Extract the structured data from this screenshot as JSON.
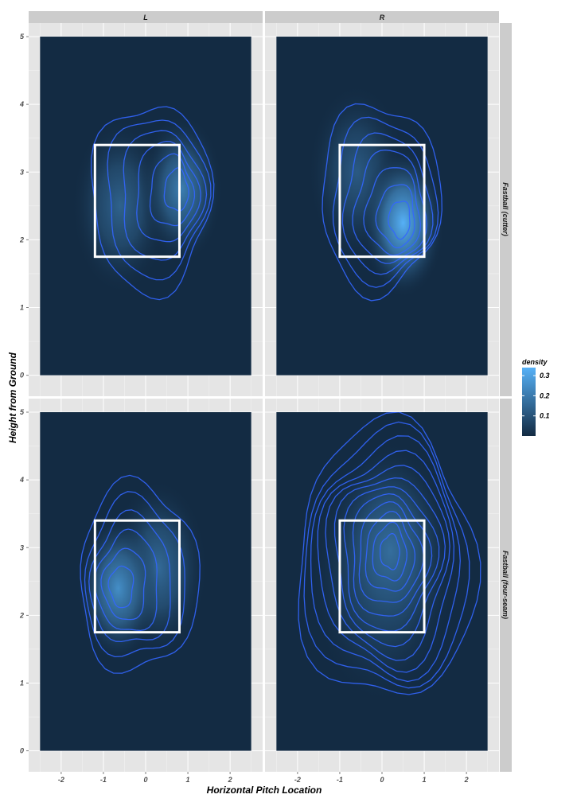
{
  "chart_data": {
    "type": "heatmap",
    "xlabel": "Horizontal Pitch Location",
    "ylabel": "Height from Ground",
    "xlim": [
      -2.5,
      2.5
    ],
    "ylim": [
      0,
      5
    ],
    "x_ticks": [
      -2,
      -1,
      0,
      1,
      2
    ],
    "x_tick_labels": [
      "-2",
      "-1",
      "0",
      "1",
      "2"
    ],
    "y_ticks": [
      0,
      1,
      2,
      3,
      4,
      5
    ],
    "y_tick_labels": [
      "0",
      "1",
      "2",
      "3",
      "4",
      "5"
    ],
    "facet_cols": [
      "L",
      "R"
    ],
    "facet_rows": [
      "Fastball (cutter)",
      "Fastball (four-seam)"
    ],
    "grid": true,
    "legend": {
      "title": "density",
      "position": "right",
      "range": [
        0,
        0.34
      ],
      "ticks": [
        0.1,
        0.2,
        0.3
      ],
      "tick_labels": [
        "0.1",
        "0.2",
        "0.3"
      ],
      "color_low": "#132B43",
      "color_high": "#56B1F7"
    },
    "contour_color": "#3366FF",
    "strike_zone_color": "#FFFFFF",
    "panels": [
      {
        "col": "L",
        "row": "Fastball (cutter)",
        "strike_zone": {
          "x": [
            -1.2,
            0.8
          ],
          "y": [
            1.75,
            3.4
          ]
        },
        "peak": {
          "x": 0.85,
          "y": 2.75,
          "density": 0.21
        },
        "secondary": {
          "x": -0.6,
          "y": 2.5,
          "density": 0.14
        },
        "contour_levels": 6
      },
      {
        "col": "R",
        "row": "Fastball (cutter)",
        "strike_zone": {
          "x": [
            -1.0,
            1.0
          ],
          "y": [
            1.75,
            3.4
          ]
        },
        "peak": {
          "x": 0.5,
          "y": 2.25,
          "density": 0.34
        },
        "secondary": {
          "x": -0.6,
          "y": 3.0,
          "density": 0.12
        },
        "contour_levels": 7
      },
      {
        "col": "L",
        "row": "Fastball (four-seam)",
        "strike_zone": {
          "x": [
            -1.2,
            0.8
          ],
          "y": [
            1.75,
            3.4
          ]
        },
        "peak": {
          "x": -0.65,
          "y": 2.4,
          "density": 0.25
        },
        "secondary": {
          "x": 0.3,
          "y": 2.7,
          "density": 0.16
        },
        "contour_levels": 6
      },
      {
        "col": "R",
        "row": "Fastball (four-seam)",
        "strike_zone": {
          "x": [
            -1.0,
            1.0
          ],
          "y": [
            1.75,
            3.4
          ]
        },
        "peak": {
          "x": 0.2,
          "y": 2.95,
          "density": 0.17
        },
        "secondary": {
          "x": 0.0,
          "y": 2.6,
          "density": 0.12
        },
        "contour_levels": 12
      }
    ]
  }
}
